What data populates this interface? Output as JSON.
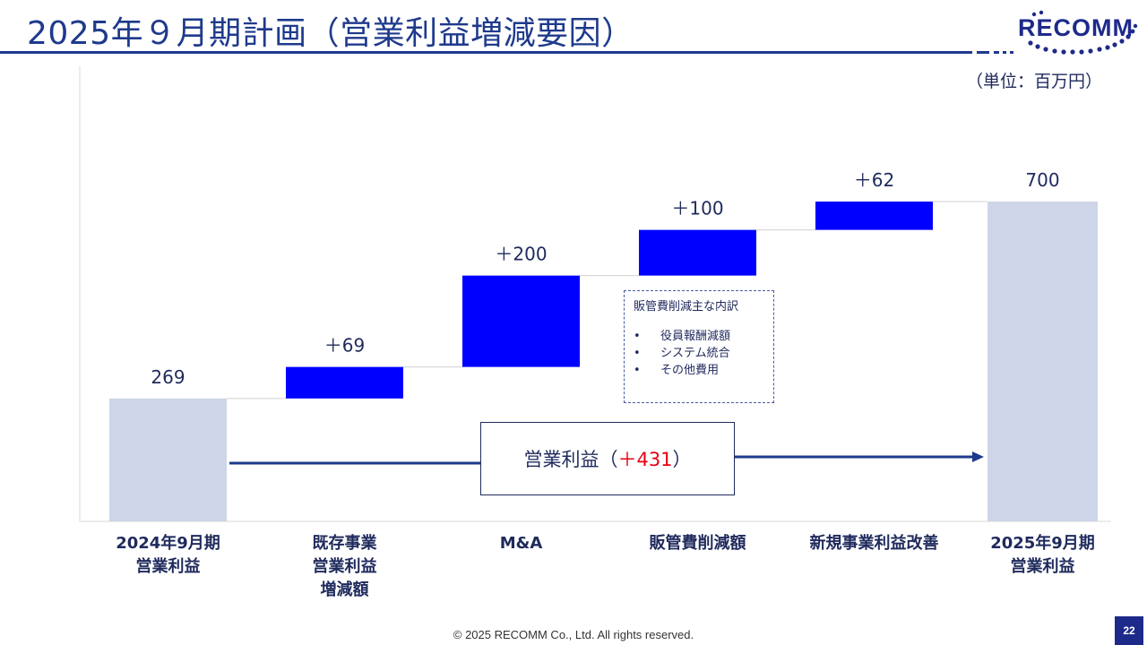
{
  "header": {
    "title": "2025年９月期計画（営業利益増減要因）",
    "logo": "RECOMM"
  },
  "unit_label": "（単位：百万円）",
  "chart_data": {
    "type": "bar",
    "subtype": "waterfall",
    "categories": [
      "2024年9月期\n営業利益",
      "既存事業\n営業利益\n増減額",
      "M&A",
      "販管費削減額",
      "新規事業利益改善",
      "2025年9月期\n営業利益"
    ],
    "values": [
      269,
      69,
      200,
      100,
      62,
      700
    ],
    "kinds": [
      "total",
      "delta",
      "delta",
      "delta",
      "delta",
      "total"
    ],
    "data_labels": [
      "269",
      "＋69",
      "＋200",
      "＋100",
      "＋62",
      "700"
    ],
    "ylim": [
      0,
      800
    ],
    "colors": {
      "total": "#cfd5e8",
      "delta": "#0000ff",
      "connector": "#d9d9d9",
      "axis": "#d9d9d9"
    }
  },
  "note_box": {
    "title": "販管費削減主な内訳",
    "bullet": "•",
    "items": [
      "役員報酬減額",
      "システム統合",
      "その他費用"
    ]
  },
  "total_change": {
    "label": "営業利益（",
    "value": "＋431",
    "suffix": "）"
  },
  "footer": {
    "copyright": "© 2025 RECOMM Co., Ltd. All rights reserved."
  },
  "page": {
    "number": "22"
  }
}
